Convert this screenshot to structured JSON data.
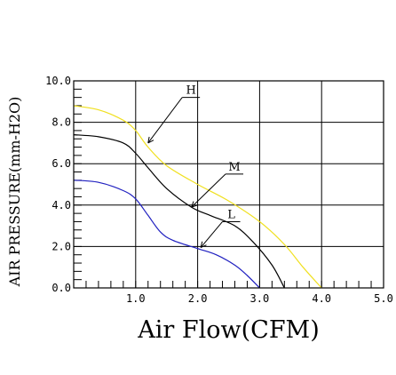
{
  "chart_data": {
    "type": "line",
    "xlabel": "Air Flow(CFM)",
    "ylabel": "AIR PRESSURE(mm-H2O)",
    "xlim": [
      0,
      5
    ],
    "ylim": [
      0,
      10
    ],
    "x_ticks": [
      "1.0",
      "2.0",
      "3.0",
      "4.0",
      "5.0"
    ],
    "y_ticks": [
      "0.0",
      "2.0",
      "4.0",
      "6.0",
      "8.0",
      "10.0"
    ],
    "grid": true,
    "series": [
      {
        "name": "H",
        "color": "#f0e020",
        "x": [
          0,
          0.4,
          0.8,
          1.0,
          1.2,
          1.5,
          2.0,
          2.5,
          3.0,
          3.4,
          3.7,
          4.0
        ],
        "y": [
          8.8,
          8.6,
          8.1,
          7.6,
          6.8,
          5.9,
          5.0,
          4.2,
          3.2,
          2.1,
          1.0,
          0.0
        ]
      },
      {
        "name": "M",
        "color": "#000000",
        "x": [
          0,
          0.4,
          0.8,
          1.0,
          1.2,
          1.5,
          1.9,
          2.2,
          2.6,
          2.9,
          3.2,
          3.4
        ],
        "y": [
          7.4,
          7.3,
          7.0,
          6.5,
          5.8,
          4.8,
          3.9,
          3.5,
          3.0,
          2.2,
          1.1,
          0.0
        ]
      },
      {
        "name": "L",
        "color": "#2020c0",
        "x": [
          0,
          0.4,
          0.8,
          1.0,
          1.2,
          1.4,
          1.6,
          2.0,
          2.3,
          2.6,
          2.8,
          3.0
        ],
        "y": [
          5.2,
          5.1,
          4.7,
          4.3,
          3.5,
          2.7,
          2.3,
          1.9,
          1.6,
          1.1,
          0.6,
          0.0
        ]
      }
    ],
    "annotations": [
      {
        "text": "H",
        "series": "H",
        "point": [
          1.2,
          7.0
        ],
        "label_at": [
          1.75,
          9.2
        ]
      },
      {
        "text": "M",
        "series": "M",
        "point": [
          1.9,
          3.9
        ],
        "label_at": [
          2.45,
          5.5
        ]
      },
      {
        "text": "L",
        "series": "L",
        "point": [
          2.05,
          1.95
        ],
        "label_at": [
          2.4,
          3.2
        ]
      }
    ]
  }
}
